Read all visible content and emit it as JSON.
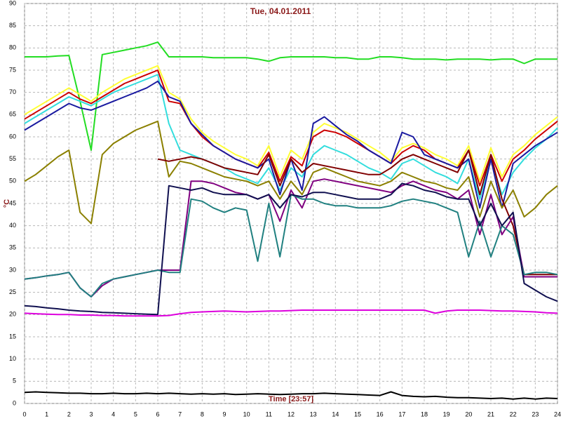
{
  "chart_data": {
    "type": "line",
    "title": "Tue, 04.01.2011",
    "x_label": "Time [23:57]",
    "y_label": "°C",
    "x": [
      0,
      0.5,
      1,
      1.5,
      2,
      2.5,
      3,
      3.5,
      4,
      4.5,
      5,
      5.5,
      6,
      6.5,
      7,
      7.5,
      8,
      8.5,
      9,
      9.5,
      10,
      10.5,
      11,
      11.5,
      12,
      12.5,
      13,
      13.5,
      14,
      14.5,
      15,
      15.5,
      16,
      16.5,
      17,
      17.5,
      18,
      18.5,
      19,
      19.5,
      20,
      20.5,
      21,
      21.5,
      22,
      22.5,
      23,
      23.5,
      24
    ],
    "xlim": [
      0,
      24
    ],
    "xticks": [
      0,
      1,
      2,
      3,
      4,
      5,
      6,
      7,
      8,
      9,
      10,
      11,
      12,
      13,
      14,
      15,
      16,
      17,
      18,
      19,
      20,
      21,
      22,
      23,
      24
    ],
    "ylim": [
      0,
      90
    ],
    "yticks": [
      0,
      5,
      10,
      15,
      20,
      25,
      30,
      35,
      40,
      45,
      50,
      55,
      60,
      65,
      70,
      75,
      80,
      85,
      90
    ],
    "grid": true,
    "series": [
      {
        "color": "#22dd22",
        "values": [
          78,
          78,
          78,
          78.2,
          78.3,
          68,
          57,
          78.5,
          79,
          79.5,
          80,
          80.5,
          81.3,
          78,
          78,
          78,
          78,
          77.8,
          77.8,
          77.8,
          77.8,
          77.5,
          77,
          77.8,
          78,
          78,
          78,
          78,
          77.8,
          77.8,
          77.5,
          77.5,
          78,
          78,
          77.8,
          77.5,
          77.5,
          77.5,
          77.3,
          77.5,
          77.5,
          77.5,
          77.3,
          77.5,
          77.5,
          76.5,
          77.5,
          77.5,
          77.5
        ]
      },
      {
        "color": "#ffff33",
        "values": [
          65,
          66.5,
          68,
          69.5,
          71,
          69.5,
          68,
          70,
          71.5,
          73,
          74,
          75,
          76,
          70,
          68.5,
          64,
          61,
          59,
          57.5,
          56,
          55,
          53.5,
          58,
          51,
          57,
          55,
          61,
          63,
          62,
          61,
          59.5,
          58,
          56.5,
          54.5,
          57.5,
          58.5,
          57.5,
          56,
          55,
          53.5,
          58,
          50,
          57.5,
          51,
          56,
          58,
          60.5,
          62.5,
          64.5
        ]
      },
      {
        "color": "#cc0000",
        "values": [
          64,
          65.5,
          67,
          68.5,
          70,
          68.5,
          67.5,
          69,
          70.5,
          72,
          73,
          74,
          75,
          68,
          67.5,
          63,
          60,
          58,
          56.5,
          55,
          54,
          53,
          56.5,
          50,
          55.5,
          53.5,
          60,
          61.5,
          61,
          60,
          58.5,
          57,
          55.5,
          54,
          56.5,
          58,
          57,
          55,
          54,
          53,
          57,
          49,
          56,
          50,
          55,
          57,
          59.5,
          61.5,
          63.5
        ]
      },
      {
        "color": "#33dddd",
        "values": [
          63,
          64.5,
          66,
          67.5,
          69,
          68,
          67,
          68.5,
          70,
          71,
          72,
          73,
          74,
          63,
          57,
          56,
          55,
          54,
          53,
          51.5,
          50.5,
          49.5,
          53,
          48,
          53,
          51,
          56,
          58,
          57,
          56,
          54.5,
          53,
          52,
          50.5,
          54,
          55,
          53.5,
          52,
          51,
          49.5,
          55,
          46,
          55,
          47,
          52,
          55,
          57.5,
          59.5,
          62
        ]
      },
      {
        "color": "#1a1aa0",
        "values": [
          61.5,
          63,
          64.5,
          66,
          67.5,
          66.5,
          66,
          67,
          68,
          69,
          70,
          71,
          72.5,
          69,
          68,
          63,
          60.5,
          58,
          56.5,
          55,
          54,
          53,
          55,
          47,
          55,
          48,
          63,
          64.5,
          62.5,
          60.5,
          59,
          57,
          55.5,
          54,
          61,
          60,
          56,
          55,
          54,
          53,
          55,
          44,
          55,
          44,
          54,
          56,
          58,
          59.5,
          61
        ]
      },
      {
        "color": "#8b8000",
        "values": [
          50,
          51.5,
          53.5,
          55.5,
          57,
          43,
          40.5,
          56,
          58.5,
          60,
          61.5,
          62.5,
          63.5,
          51,
          54.5,
          54,
          53,
          52,
          51,
          50.5,
          50,
          49,
          50,
          46,
          50,
          47,
          52,
          53,
          52,
          51,
          50,
          49.5,
          49,
          50,
          52,
          51,
          50,
          49.5,
          48.5,
          48,
          51,
          42,
          50,
          44,
          48,
          42,
          44,
          47,
          49
        ]
      },
      {
        "color": "#800000",
        "values": [
          null,
          null,
          null,
          null,
          null,
          null,
          null,
          null,
          null,
          null,
          null,
          null,
          55,
          54.5,
          55,
          55.5,
          55,
          54,
          53,
          52.5,
          52,
          51.5,
          56,
          49,
          55,
          52,
          54,
          53.5,
          53,
          52.5,
          52,
          51.5,
          51.5,
          53,
          55,
          56,
          55,
          54,
          53,
          52,
          57,
          47,
          56,
          46,
          40,
          29,
          29,
          29,
          29
        ]
      },
      {
        "color": "#800080",
        "values": [
          28,
          28.3,
          28.7,
          29,
          29.5,
          26,
          24,
          26.5,
          28,
          28.5,
          29,
          29.5,
          30,
          30,
          30,
          50,
          50,
          49.5,
          48.5,
          47.5,
          47,
          46,
          47,
          41,
          48,
          44,
          50,
          50.5,
          50,
          49.5,
          49,
          48.5,
          48,
          47.5,
          49,
          50,
          49,
          48,
          47.5,
          46,
          48,
          38,
          47,
          38,
          42,
          28.5,
          28.5,
          28.5,
          28.5
        ]
      },
      {
        "color": "#208080",
        "values": [
          28,
          28.3,
          28.7,
          29,
          29.5,
          26,
          24,
          27,
          28,
          28.5,
          29,
          29.5,
          30,
          29.5,
          29.5,
          46,
          45.5,
          44,
          43,
          44,
          43.5,
          32,
          45,
          33,
          47,
          46,
          46,
          45,
          44.5,
          44.5,
          44,
          44,
          44,
          44.5,
          45.5,
          46,
          45.5,
          45,
          44,
          43,
          33,
          41,
          33,
          40,
          38,
          29,
          29.5,
          29.5,
          29
        ]
      },
      {
        "color": "#101050",
        "values": [
          22,
          21.8,
          21.5,
          21.3,
          21,
          20.8,
          20.7,
          20.5,
          20.4,
          20.3,
          20.2,
          20.1,
          20,
          49,
          48.5,
          48,
          48.5,
          47.5,
          47,
          47,
          47,
          46,
          47,
          44,
          47,
          46.5,
          47.5,
          47.5,
          47,
          46.5,
          46,
          46,
          46,
          47,
          49.5,
          49,
          48,
          47.5,
          46.5,
          46,
          46,
          40,
          45,
          40,
          43,
          27,
          25.5,
          24,
          23
        ]
      },
      {
        "color": "#dd00dd",
        "values": [
          20.3,
          20.2,
          20.1,
          20,
          20,
          19.9,
          19.9,
          19.8,
          19.8,
          19.7,
          19.7,
          19.7,
          19.7,
          19.8,
          20.2,
          20.5,
          20.6,
          20.7,
          20.8,
          20.7,
          20.6,
          20.7,
          20.8,
          20.8,
          20.9,
          21,
          21,
          21,
          21,
          21,
          21,
          21,
          21,
          21,
          21,
          21,
          21,
          20.3,
          20.8,
          21,
          21,
          21,
          20.9,
          20.8,
          20.8,
          20.7,
          20.6,
          20.4,
          20.3
        ]
      },
      {
        "color": "#000000",
        "values": [
          2.5,
          2.6,
          2.5,
          2.4,
          2.3,
          2.3,
          2.2,
          2.2,
          2.3,
          2.2,
          2.2,
          2.3,
          2.2,
          2.3,
          2.2,
          2.1,
          2.2,
          2.1,
          2.2,
          2,
          2.1,
          2.2,
          2.1,
          2,
          2.1,
          2.2,
          2.2,
          2.3,
          2.2,
          2.1,
          2,
          1.9,
          1.8,
          2.6,
          1.8,
          1.6,
          1.5,
          1.6,
          1.4,
          1.3,
          1.3,
          1.2,
          1.1,
          1.2,
          1,
          1.2,
          1,
          1.2,
          1.1
        ]
      }
    ]
  }
}
